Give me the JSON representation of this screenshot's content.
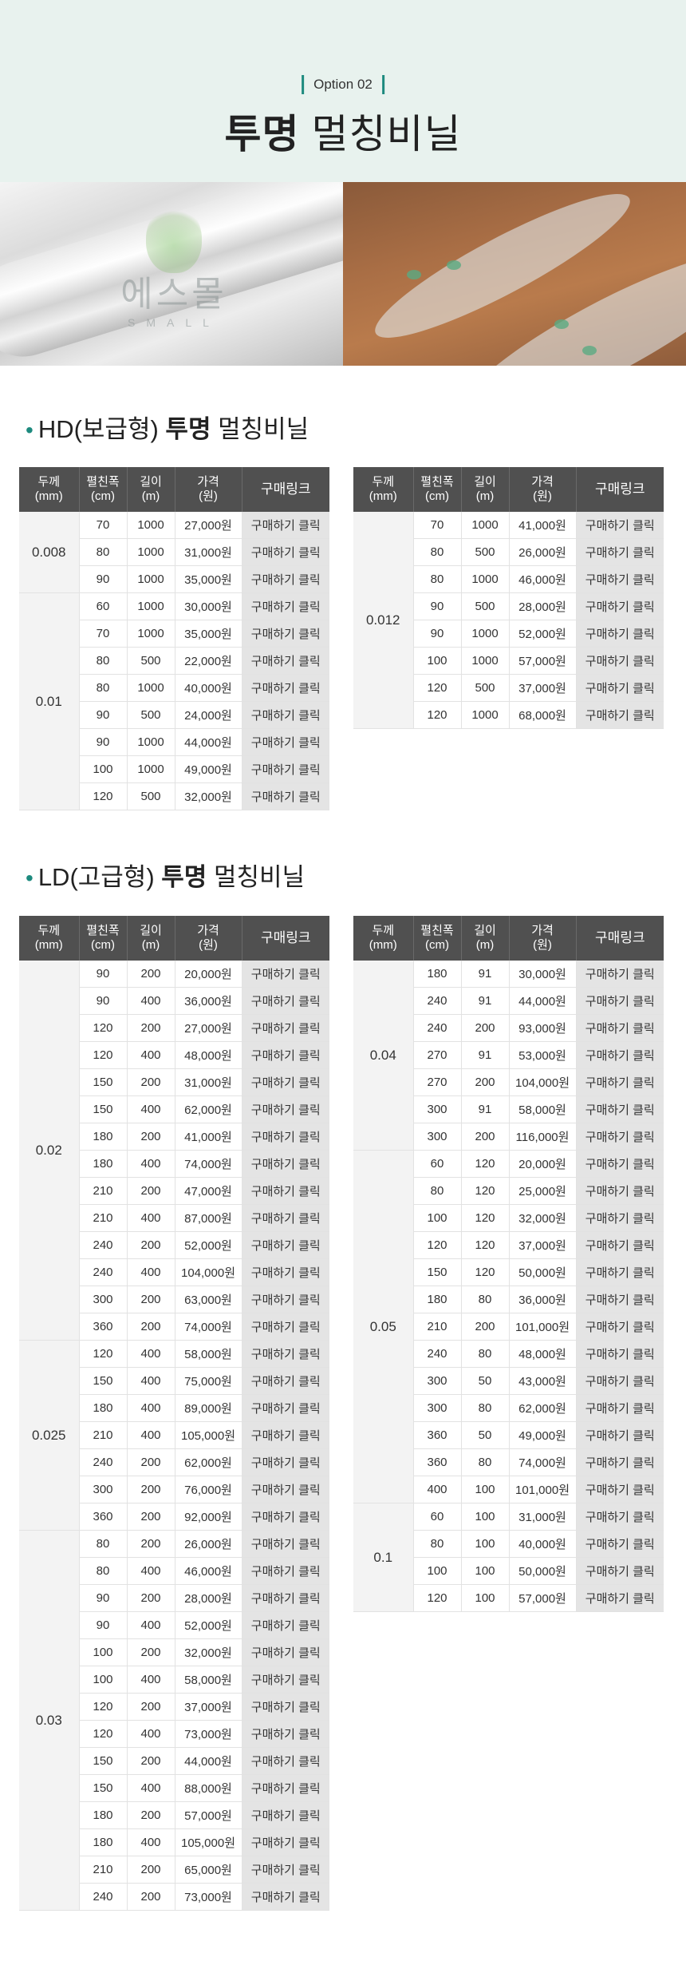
{
  "hero": {
    "badge": "Option 02",
    "title_bold": "투명",
    "title_rest": "멀칭비닐"
  },
  "logo": {
    "text": "에스몰",
    "sub": "SMALL"
  },
  "headers": {
    "thickness": "두께",
    "thickness_unit": "(mm)",
    "width": "펼친폭",
    "width_unit": "(cm)",
    "length": "길이",
    "length_unit": "(m)",
    "price": "가격",
    "price_unit": "(원)",
    "link": "구매링크"
  },
  "buy_label": "구매하기 클릭",
  "sections": [
    {
      "title_prefix": "HD(보급형)",
      "title_bold": "투명",
      "title_rest": "멀칭비닐",
      "tables": [
        {
          "groups": [
            {
              "thickness": "0.008",
              "rows": [
                [
                  "70",
                  "1000",
                  "27,000원"
                ],
                [
                  "80",
                  "1000",
                  "31,000원"
                ],
                [
                  "90",
                  "1000",
                  "35,000원"
                ]
              ]
            },
            {
              "thickness": "0.01",
              "rows": [
                [
                  "60",
                  "1000",
                  "30,000원"
                ],
                [
                  "70",
                  "1000",
                  "35,000원"
                ],
                [
                  "80",
                  "500",
                  "22,000원"
                ],
                [
                  "80",
                  "1000",
                  "40,000원"
                ],
                [
                  "90",
                  "500",
                  "24,000원"
                ],
                [
                  "90",
                  "1000",
                  "44,000원"
                ],
                [
                  "100",
                  "1000",
                  "49,000원"
                ],
                [
                  "120",
                  "500",
                  "32,000원"
                ]
              ]
            }
          ]
        },
        {
          "groups": [
            {
              "thickness": "0.012",
              "rows": [
                [
                  "70",
                  "1000",
                  "41,000원"
                ],
                [
                  "80",
                  "500",
                  "26,000원"
                ],
                [
                  "80",
                  "1000",
                  "46,000원"
                ],
                [
                  "90",
                  "500",
                  "28,000원"
                ],
                [
                  "90",
                  "1000",
                  "52,000원"
                ],
                [
                  "100",
                  "1000",
                  "57,000원"
                ],
                [
                  "120",
                  "500",
                  "37,000원"
                ],
                [
                  "120",
                  "1000",
                  "68,000원"
                ]
              ]
            }
          ]
        }
      ]
    },
    {
      "title_prefix": "LD(고급형)",
      "title_bold": "투명",
      "title_rest": "멀칭비닐",
      "tables": [
        {
          "groups": [
            {
              "thickness": "0.02",
              "rows": [
                [
                  "90",
                  "200",
                  "20,000원"
                ],
                [
                  "90",
                  "400",
                  "36,000원"
                ],
                [
                  "120",
                  "200",
                  "27,000원"
                ],
                [
                  "120",
                  "400",
                  "48,000원"
                ],
                [
                  "150",
                  "200",
                  "31,000원"
                ],
                [
                  "150",
                  "400",
                  "62,000원"
                ],
                [
                  "180",
                  "200",
                  "41,000원"
                ],
                [
                  "180",
                  "400",
                  "74,000원"
                ],
                [
                  "210",
                  "200",
                  "47,000원"
                ],
                [
                  "210",
                  "400",
                  "87,000원"
                ],
                [
                  "240",
                  "200",
                  "52,000원"
                ],
                [
                  "240",
                  "400",
                  "104,000원"
                ],
                [
                  "300",
                  "200",
                  "63,000원"
                ],
                [
                  "360",
                  "200",
                  "74,000원"
                ]
              ]
            },
            {
              "thickness": "0.025",
              "rows": [
                [
                  "120",
                  "400",
                  "58,000원"
                ],
                [
                  "150",
                  "400",
                  "75,000원"
                ],
                [
                  "180",
                  "400",
                  "89,000원"
                ],
                [
                  "210",
                  "400",
                  "105,000원"
                ],
                [
                  "240",
                  "200",
                  "62,000원"
                ],
                [
                  "300",
                  "200",
                  "76,000원"
                ],
                [
                  "360",
                  "200",
                  "92,000원"
                ]
              ]
            },
            {
              "thickness": "0.03",
              "rows": [
                [
                  "80",
                  "200",
                  "26,000원"
                ],
                [
                  "80",
                  "400",
                  "46,000원"
                ],
                [
                  "90",
                  "200",
                  "28,000원"
                ],
                [
                  "90",
                  "400",
                  "52,000원"
                ],
                [
                  "100",
                  "200",
                  "32,000원"
                ],
                [
                  "100",
                  "400",
                  "58,000원"
                ],
                [
                  "120",
                  "200",
                  "37,000원"
                ],
                [
                  "120",
                  "400",
                  "73,000원"
                ],
                [
                  "150",
                  "200",
                  "44,000원"
                ],
                [
                  "150",
                  "400",
                  "88,000원"
                ],
                [
                  "180",
                  "200",
                  "57,000원"
                ],
                [
                  "180",
                  "400",
                  "105,000원"
                ],
                [
                  "210",
                  "200",
                  "65,000원"
                ],
                [
                  "240",
                  "200",
                  "73,000원"
                ]
              ]
            }
          ]
        },
        {
          "groups": [
            {
              "thickness": "0.04",
              "rows": [
                [
                  "180",
                  "91",
                  "30,000원"
                ],
                [
                  "240",
                  "91",
                  "44,000원"
                ],
                [
                  "240",
                  "200",
                  "93,000원"
                ],
                [
                  "270",
                  "91",
                  "53,000원"
                ],
                [
                  "270",
                  "200",
                  "104,000원"
                ],
                [
                  "300",
                  "91",
                  "58,000원"
                ],
                [
                  "300",
                  "200",
                  "116,000원"
                ]
              ]
            },
            {
              "thickness": "0.05",
              "rows": [
                [
                  "60",
                  "120",
                  "20,000원"
                ],
                [
                  "80",
                  "120",
                  "25,000원"
                ],
                [
                  "100",
                  "120",
                  "32,000원"
                ],
                [
                  "120",
                  "120",
                  "37,000원"
                ],
                [
                  "150",
                  "120",
                  "50,000원"
                ],
                [
                  "180",
                  "80",
                  "36,000원"
                ],
                [
                  "210",
                  "200",
                  "101,000원"
                ],
                [
                  "240",
                  "80",
                  "48,000원"
                ],
                [
                  "300",
                  "50",
                  "43,000원"
                ],
                [
                  "300",
                  "80",
                  "62,000원"
                ],
                [
                  "360",
                  "50",
                  "49,000원"
                ],
                [
                  "360",
                  "80",
                  "74,000원"
                ],
                [
                  "400",
                  "100",
                  "101,000원"
                ]
              ]
            },
            {
              "thickness": "0.1",
              "rows": [
                [
                  "60",
                  "100",
                  "31,000원"
                ],
                [
                  "80",
                  "100",
                  "40,000원"
                ],
                [
                  "100",
                  "100",
                  "50,000원"
                ],
                [
                  "120",
                  "100",
                  "57,000원"
                ]
              ]
            }
          ]
        }
      ]
    }
  ]
}
